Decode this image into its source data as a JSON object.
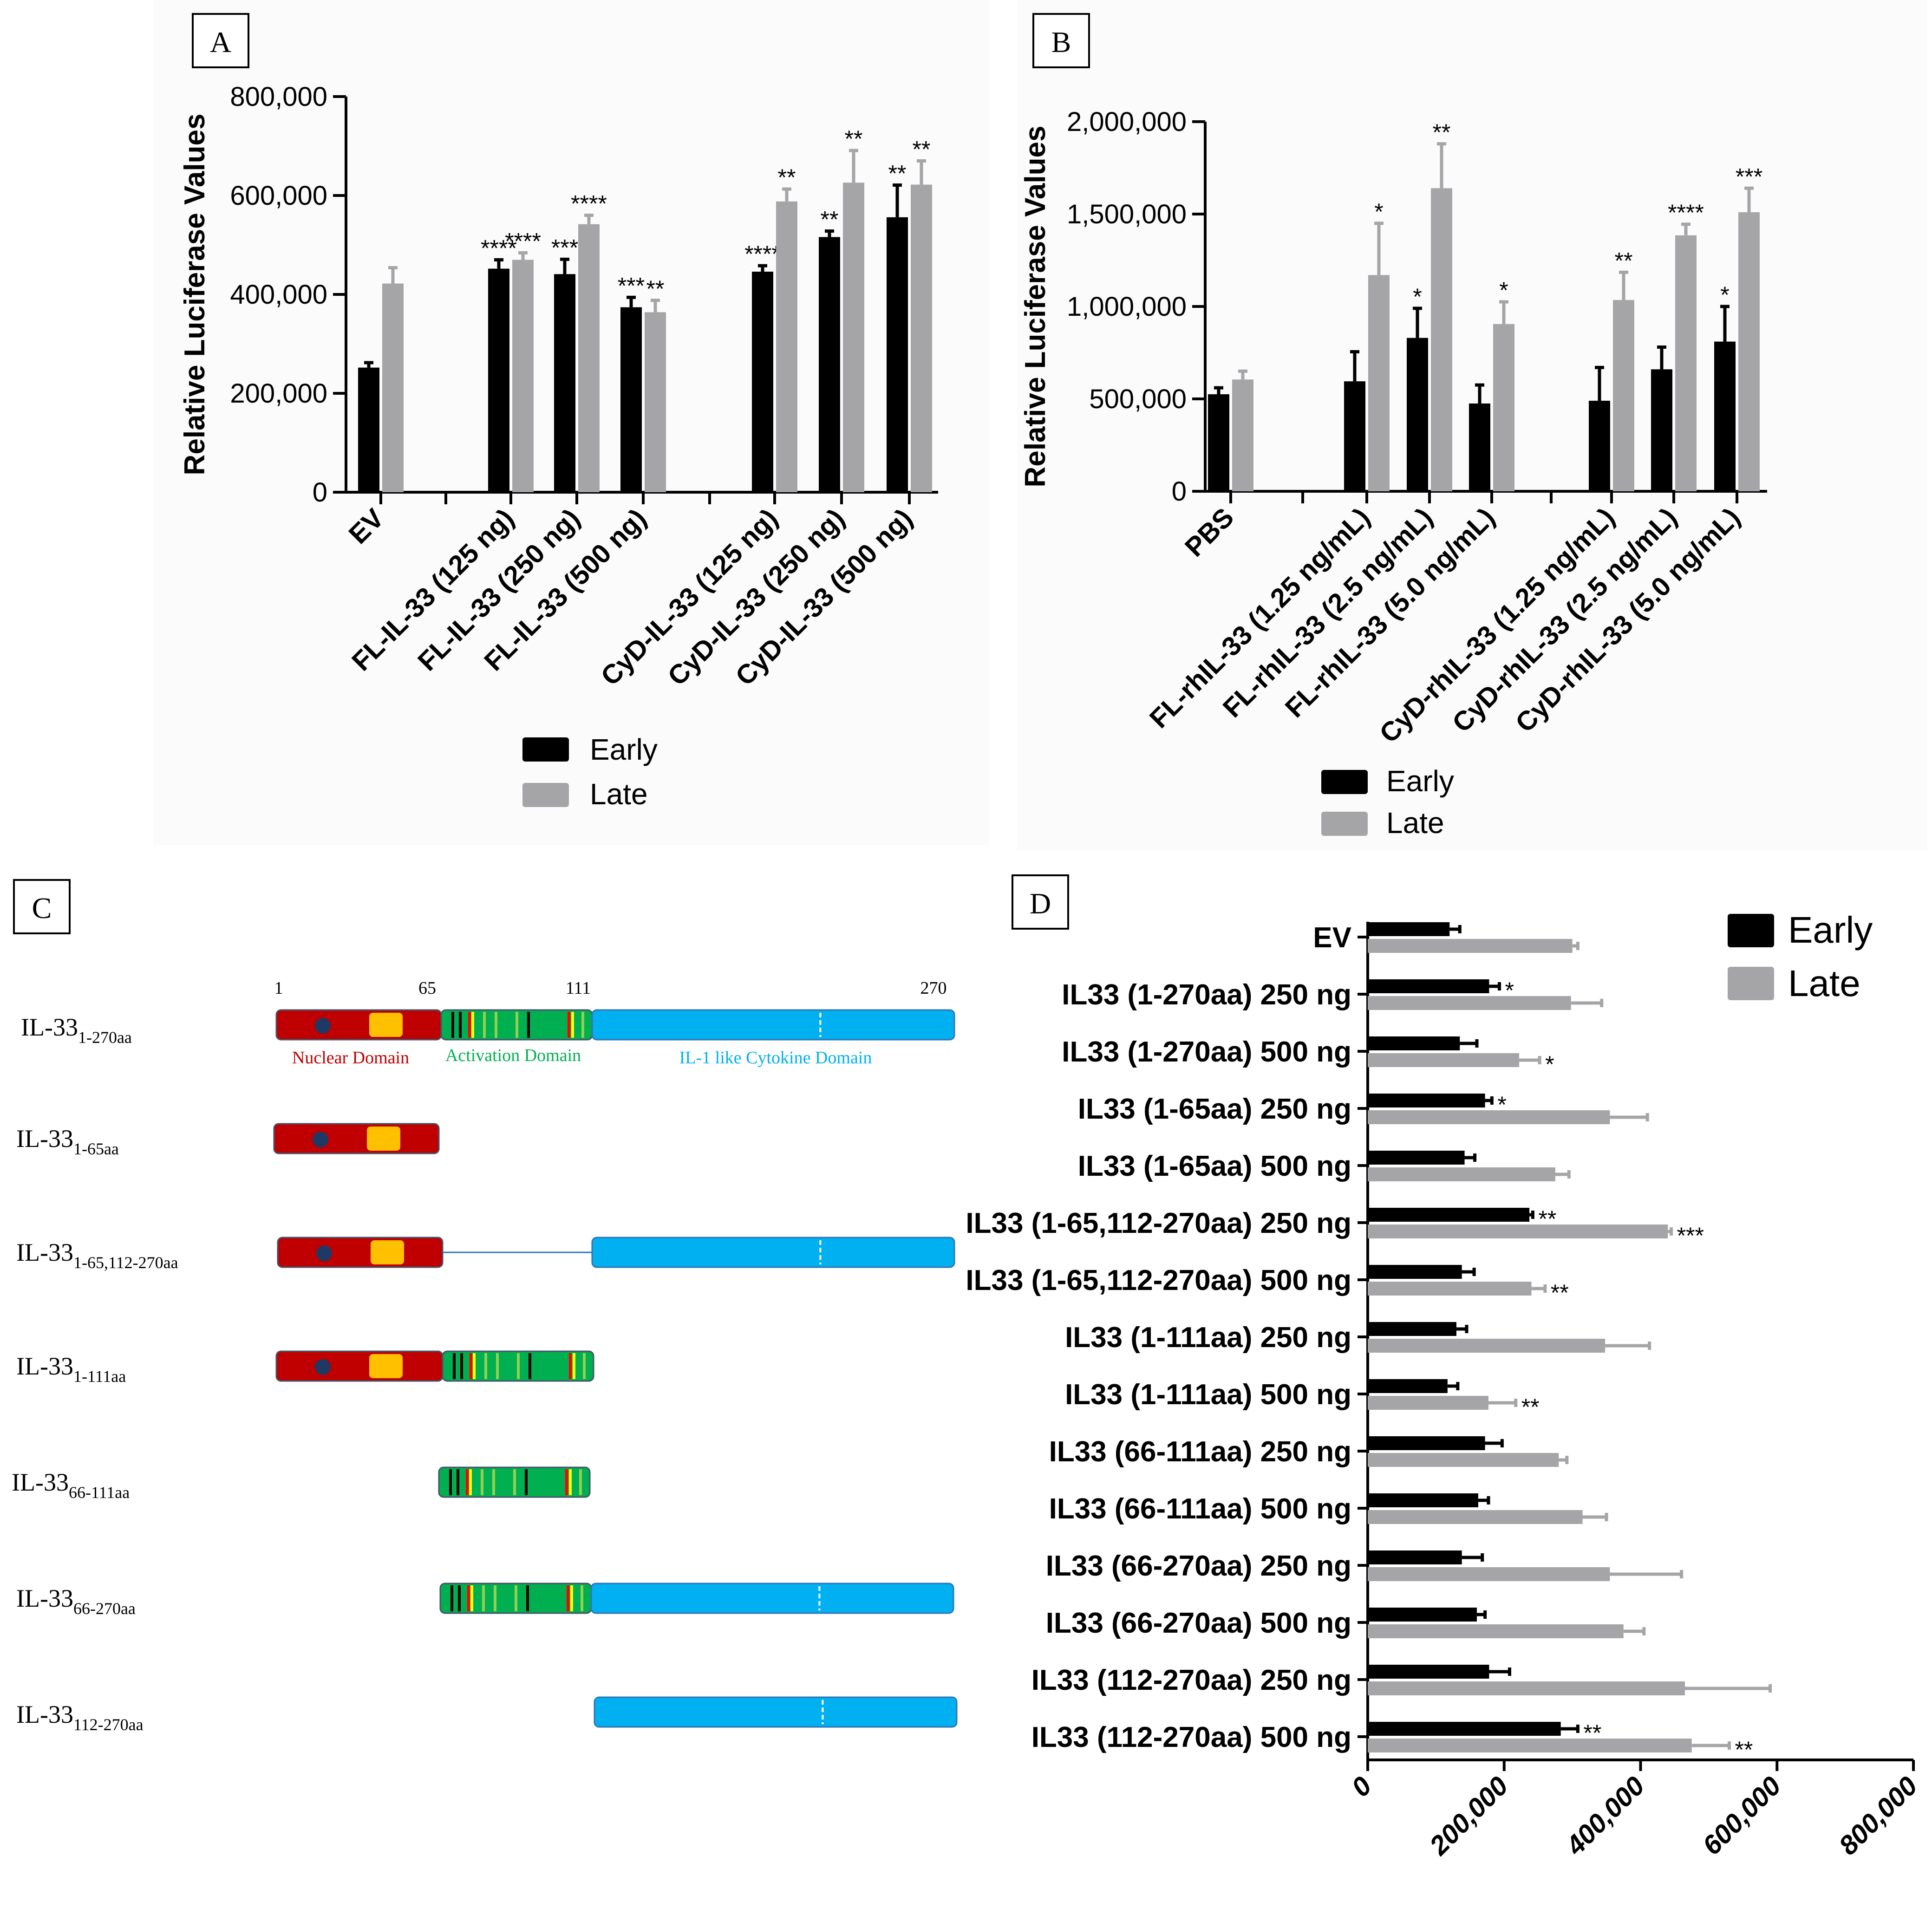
{
  "panels": {
    "A": {
      "label": "A"
    },
    "B": {
      "label": "B"
    },
    "C": {
      "label": "C"
    },
    "D": {
      "label": "D"
    }
  },
  "colors": {
    "early": "#000000",
    "late": "#a5a5a8",
    "nuclear": "#c00000",
    "activation": "#00b050",
    "cytokine": "#00b0f0",
    "nls": "#1f3864",
    "motif": "#ffc000"
  },
  "legend": {
    "early": "Early",
    "late": "Late"
  },
  "chart_data": [
    {
      "panel": "A",
      "type": "bar",
      "ylabel": "Relative Luciferase Values",
      "ylim": [
        0,
        800000
      ],
      "yticks": [
        "0",
        "200,000",
        "400,000",
        "600,000",
        "800,000"
      ],
      "categories": [
        "EV",
        "FL-IL-33 (125 ng)",
        "FL-IL-33 (250 ng)",
        "FL-IL-33 (500 ng)",
        "CyD-IL-33 (125 ng)",
        "CyD-IL-33 (250 ng)",
        "CyD-IL-33 (500 ng)"
      ],
      "series": [
        {
          "name": "Early",
          "values": [
            252000,
            452000,
            441000,
            374000,
            446000,
            516000,
            556000
          ],
          "errors": [
            10000,
            18000,
            30000,
            20000,
            12000,
            12000,
            65000
          ],
          "marks": [
            "",
            "****",
            "***",
            "***",
            "****",
            "**",
            "**"
          ]
        },
        {
          "name": "Late",
          "values": [
            422000,
            470000,
            542000,
            364000,
            588000,
            626000,
            622000
          ],
          "errors": [
            32000,
            14000,
            18000,
            24000,
            25000,
            65000,
            48000
          ],
          "marks": [
            "",
            "****",
            "****",
            "**",
            "**",
            "**",
            "**"
          ]
        }
      ]
    },
    {
      "panel": "B",
      "type": "bar",
      "ylabel": "Relative Luciferase Values",
      "ylim": [
        0,
        2000000
      ],
      "yticks": [
        "0",
        "500,000",
        "1,000,000",
        "1,500,000",
        "2,000,000"
      ],
      "categories": [
        "PBS",
        "FL-rhIL-33 (1.25 ng/mL)",
        "FL-rhIL-33 (2.5 ng/mL)",
        "FL-rhIL-33 (5.0 ng/mL)",
        "CyD-rhIL-33 (1.25 ng/mL)",
        "CyD-rhIL-33 (2.5 ng/mL)",
        "CyD-rhIL-33 (5.0 ng/mL)"
      ],
      "series": [
        {
          "name": "Early",
          "values": [
            525000,
            595000,
            830000,
            475000,
            490000,
            660000,
            810000
          ],
          "errors": [
            35000,
            160000,
            160000,
            100000,
            180000,
            120000,
            190000
          ],
          "marks": [
            "",
            "",
            "*",
            "",
            "",
            "",
            "*"
          ]
        },
        {
          "name": "Late",
          "values": [
            605000,
            1170000,
            1640000,
            905000,
            1035000,
            1385000,
            1510000
          ],
          "errors": [
            45000,
            280000,
            240000,
            120000,
            150000,
            60000,
            130000
          ],
          "marks": [
            "",
            "*",
            "**",
            "*",
            "**",
            "****",
            "***"
          ]
        }
      ]
    },
    {
      "panel": "D",
      "type": "bar",
      "orientation": "horizontal",
      "xlim": [
        0,
        800000
      ],
      "xticks": [
        "0",
        "200,000",
        "400,000",
        "600,000",
        "800,000"
      ],
      "categories": [
        "EV",
        "IL33 (1-270aa) 250 ng",
        "IL33 (1-270aa) 500 ng",
        "IL33 (1-65aa) 250 ng",
        "IL33 (1-65aa) 500 ng",
        "IL33 (1-65,112-270aa) 250 ng",
        "IL33 (1-65,112-270aa) 500 ng",
        "IL33 (1-111aa) 250 ng",
        "IL33 (1-111aa) 500 ng",
        "IL33 (66-111aa) 250 ng",
        "IL33 (66-111aa) 500 ng",
        "IL33 (66-270aa) 250 ng",
        "IL33 (66-270aa) 500 ng",
        "IL33 (112-270aa) 250 ng",
        "IL33 (112-270aa) 500 ng"
      ],
      "series": [
        {
          "name": "Early",
          "values": [
            120000,
            178000,
            135000,
            172000,
            142000,
            237000,
            138000,
            130000,
            117000,
            172000,
            162000,
            138000,
            160000,
            178000,
            283000
          ],
          "errors": [
            15000,
            15000,
            25000,
            10000,
            15000,
            5000,
            18000,
            15000,
            15000,
            25000,
            15000,
            30000,
            12000,
            30000,
            25000
          ],
          "marks": [
            "",
            "*",
            "",
            "*",
            "",
            "**",
            "",
            "",
            "",
            "",
            "",
            "",
            "",
            "",
            "**"
          ]
        },
        {
          "name": "Late",
          "values": [
            300000,
            298000,
            222000,
            355000,
            275000,
            440000,
            240000,
            348000,
            177000,
            280000,
            315000,
            355000,
            375000,
            465000,
            475000
          ],
          "errors": [
            8000,
            45000,
            30000,
            55000,
            20000,
            5000,
            20000,
            65000,
            40000,
            12000,
            35000,
            105000,
            30000,
            125000,
            55000
          ],
          "marks": [
            "",
            "",
            "*",
            "",
            "",
            "***",
            "**",
            "",
            "**",
            "",
            "",
            "",
            "",
            "",
            "**"
          ]
        }
      ]
    }
  ],
  "diagram": {
    "positions": {
      "p1": "1",
      "p65": "65",
      "p111": "111",
      "p270": "270"
    },
    "domains": {
      "nuclear": "Nuclear Domain",
      "activation": "Activation Domain",
      "cytokine": "IL-1 like Cytokine Domain"
    },
    "constructs": [
      {
        "base": "IL-33",
        "sub": "1-270aa"
      },
      {
        "base": "IL-33",
        "sub": "1-65aa"
      },
      {
        "base": "IL-33",
        "sub": "1-65,112-270aa"
      },
      {
        "base": "IL-33",
        "sub": "1-111aa"
      },
      {
        "base": "IL-33",
        "sub": "66-111aa"
      },
      {
        "base": "IL-33",
        "sub": "66-270aa"
      },
      {
        "base": "IL-33",
        "sub": "112-270aa"
      }
    ]
  }
}
